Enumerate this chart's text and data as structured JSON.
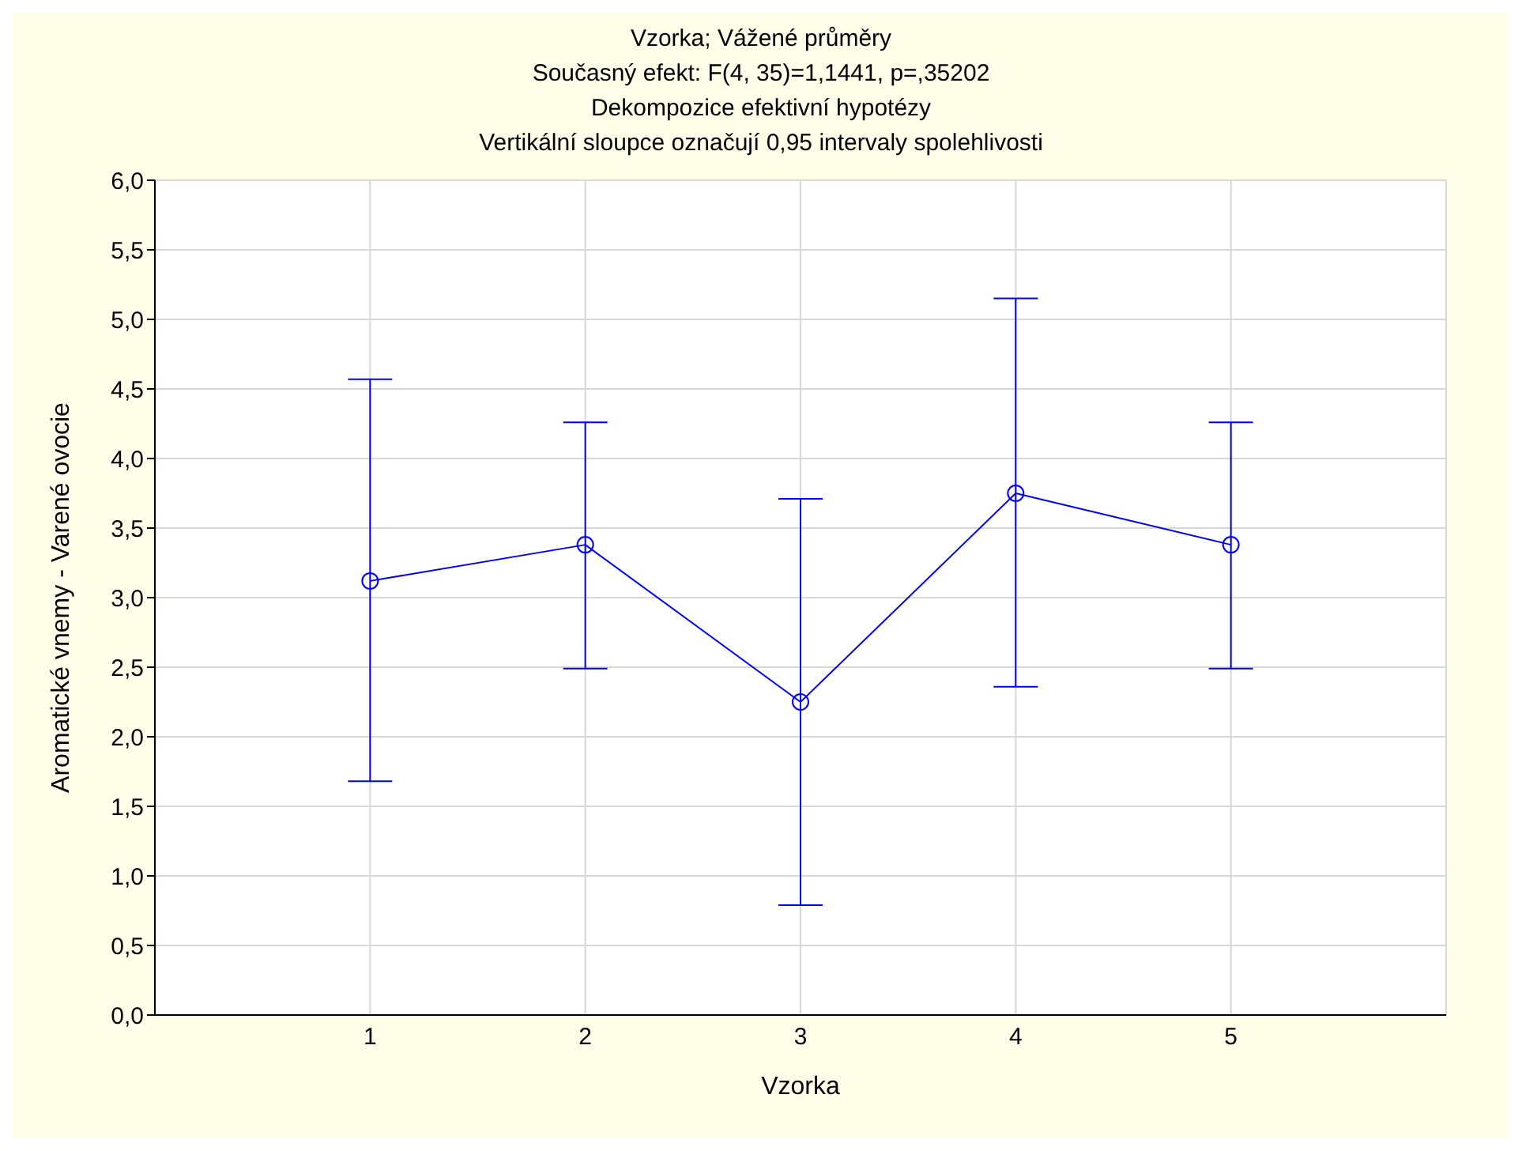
{
  "chart_data": {
    "type": "line",
    "title": "Vzorka; Vážené průměry",
    "subtitle": "Současný efekt: F(4, 35)=1,1441, p=,35202\nDekompozice efektivní hypotézy\nVertikální sloupce označují 0,95 intervaly spolehlivosti",
    "xlabel": "Vzorka",
    "ylabel": "Aromatické vnemy - Varené ovocie",
    "categories": [
      "1",
      "2",
      "3",
      "4",
      "5"
    ],
    "series": [
      {
        "color": "#0000ff",
        "values": [
          3.12,
          3.38,
          2.25,
          3.75,
          3.38
        ],
        "errors": [
          [
            1.68,
            4.57
          ],
          [
            2.49,
            4.26
          ],
          [
            0.79,
            3.71
          ],
          [
            2.36,
            5.15
          ],
          [
            2.49,
            4.26
          ]
        ]
      }
    ],
    "ylim": [
      0,
      6
    ],
    "yticks": [
      {
        "value": 0,
        "label": "0,0"
      },
      {
        "value": 0.5,
        "label": "0,5"
      },
      {
        "value": 1,
        "label": "1,0"
      },
      {
        "value": 1.5,
        "label": "1,5"
      },
      {
        "value": 2,
        "label": "2,0"
      },
      {
        "value": 2.5,
        "label": "2,5"
      },
      {
        "value": 3,
        "label": "3,0"
      },
      {
        "value": 3.5,
        "label": "3,5"
      },
      {
        "value": 4,
        "label": "4,0"
      },
      {
        "value": 4.5,
        "label": "4,5"
      },
      {
        "value": 5,
        "label": "5,0"
      },
      {
        "value": 5.5,
        "label": "5,5"
      },
      {
        "value": 6,
        "label": "6,0"
      }
    ],
    "grid": true,
    "marker": "circle",
    "line_style": "solid"
  }
}
